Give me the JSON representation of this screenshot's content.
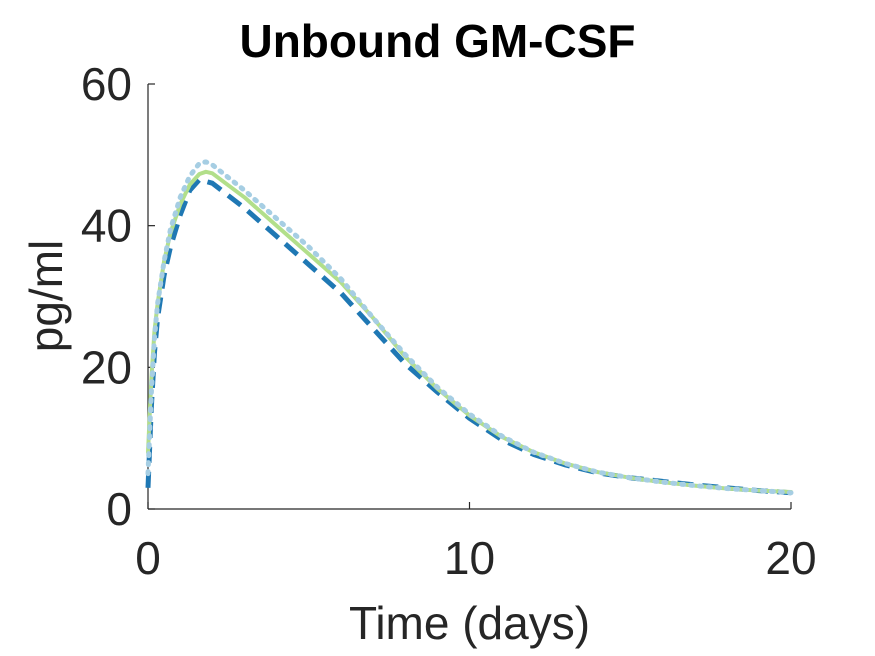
{
  "chart_data": {
    "type": "line",
    "title": "Unbound GM-CSF",
    "xlabel": "Time (days)",
    "ylabel": "pg/ml",
    "xlim": [
      0,
      20
    ],
    "ylim": [
      0,
      60
    ],
    "xticks": [
      0,
      10,
      20
    ],
    "yticks": [
      0,
      20,
      40,
      60
    ],
    "grid": false,
    "legend": "none",
    "series": [
      {
        "style": "dashed",
        "color": "#1f78b4",
        "x": [
          0,
          0.1,
          0.2,
          0.3,
          0.5,
          0.7,
          1.0,
          1.3,
          1.6,
          2.0,
          3,
          4,
          5,
          6,
          7,
          8,
          9,
          10,
          11,
          12,
          13,
          14,
          15,
          16,
          17,
          18,
          19,
          20
        ],
        "y": [
          3,
          14,
          22,
          27,
          33,
          37,
          41.5,
          45,
          46.5,
          46,
          42.5,
          38.5,
          34.5,
          30.5,
          25.5,
          20.5,
          16.5,
          12.8,
          9.8,
          7.7,
          6.2,
          5.1,
          4.4,
          3.9,
          3.4,
          3.0,
          2.6,
          2.3
        ]
      },
      {
        "style": "solid",
        "color": "#b2df8a",
        "x": [
          0,
          0.1,
          0.2,
          0.3,
          0.5,
          0.7,
          1.0,
          1.3,
          1.6,
          1.8,
          2.0,
          3,
          4,
          5,
          6,
          7,
          8,
          9,
          10,
          11,
          12,
          13,
          14,
          15,
          16,
          17,
          18,
          19,
          20
        ],
        "y": [
          8,
          18,
          25,
          29,
          35,
          39,
          43,
          45.8,
          47.3,
          47.6,
          47.4,
          44,
          40,
          36,
          32,
          27,
          21.5,
          17,
          13.2,
          10.2,
          8.0,
          6.4,
          5.2,
          4.4,
          3.8,
          3.3,
          2.9,
          2.6,
          2.4
        ]
      },
      {
        "style": "dotted",
        "color": "#a6cee3",
        "x": [
          0,
          0.1,
          0.2,
          0.3,
          0.5,
          0.7,
          1.0,
          1.3,
          1.6,
          1.8,
          2.0,
          3,
          4,
          5,
          6,
          7,
          8,
          9,
          10,
          11,
          12,
          13,
          14,
          15,
          16,
          17,
          18,
          19,
          20
        ],
        "y": [
          5,
          16,
          24,
          29,
          35,
          39.5,
          44,
          47,
          48.8,
          49,
          48.6,
          45,
          41,
          37,
          32.5,
          27,
          21.8,
          17.2,
          13.4,
          10.3,
          8.0,
          6.4,
          5.2,
          4.4,
          3.8,
          3.3,
          2.9,
          2.6,
          2.3
        ]
      }
    ]
  }
}
